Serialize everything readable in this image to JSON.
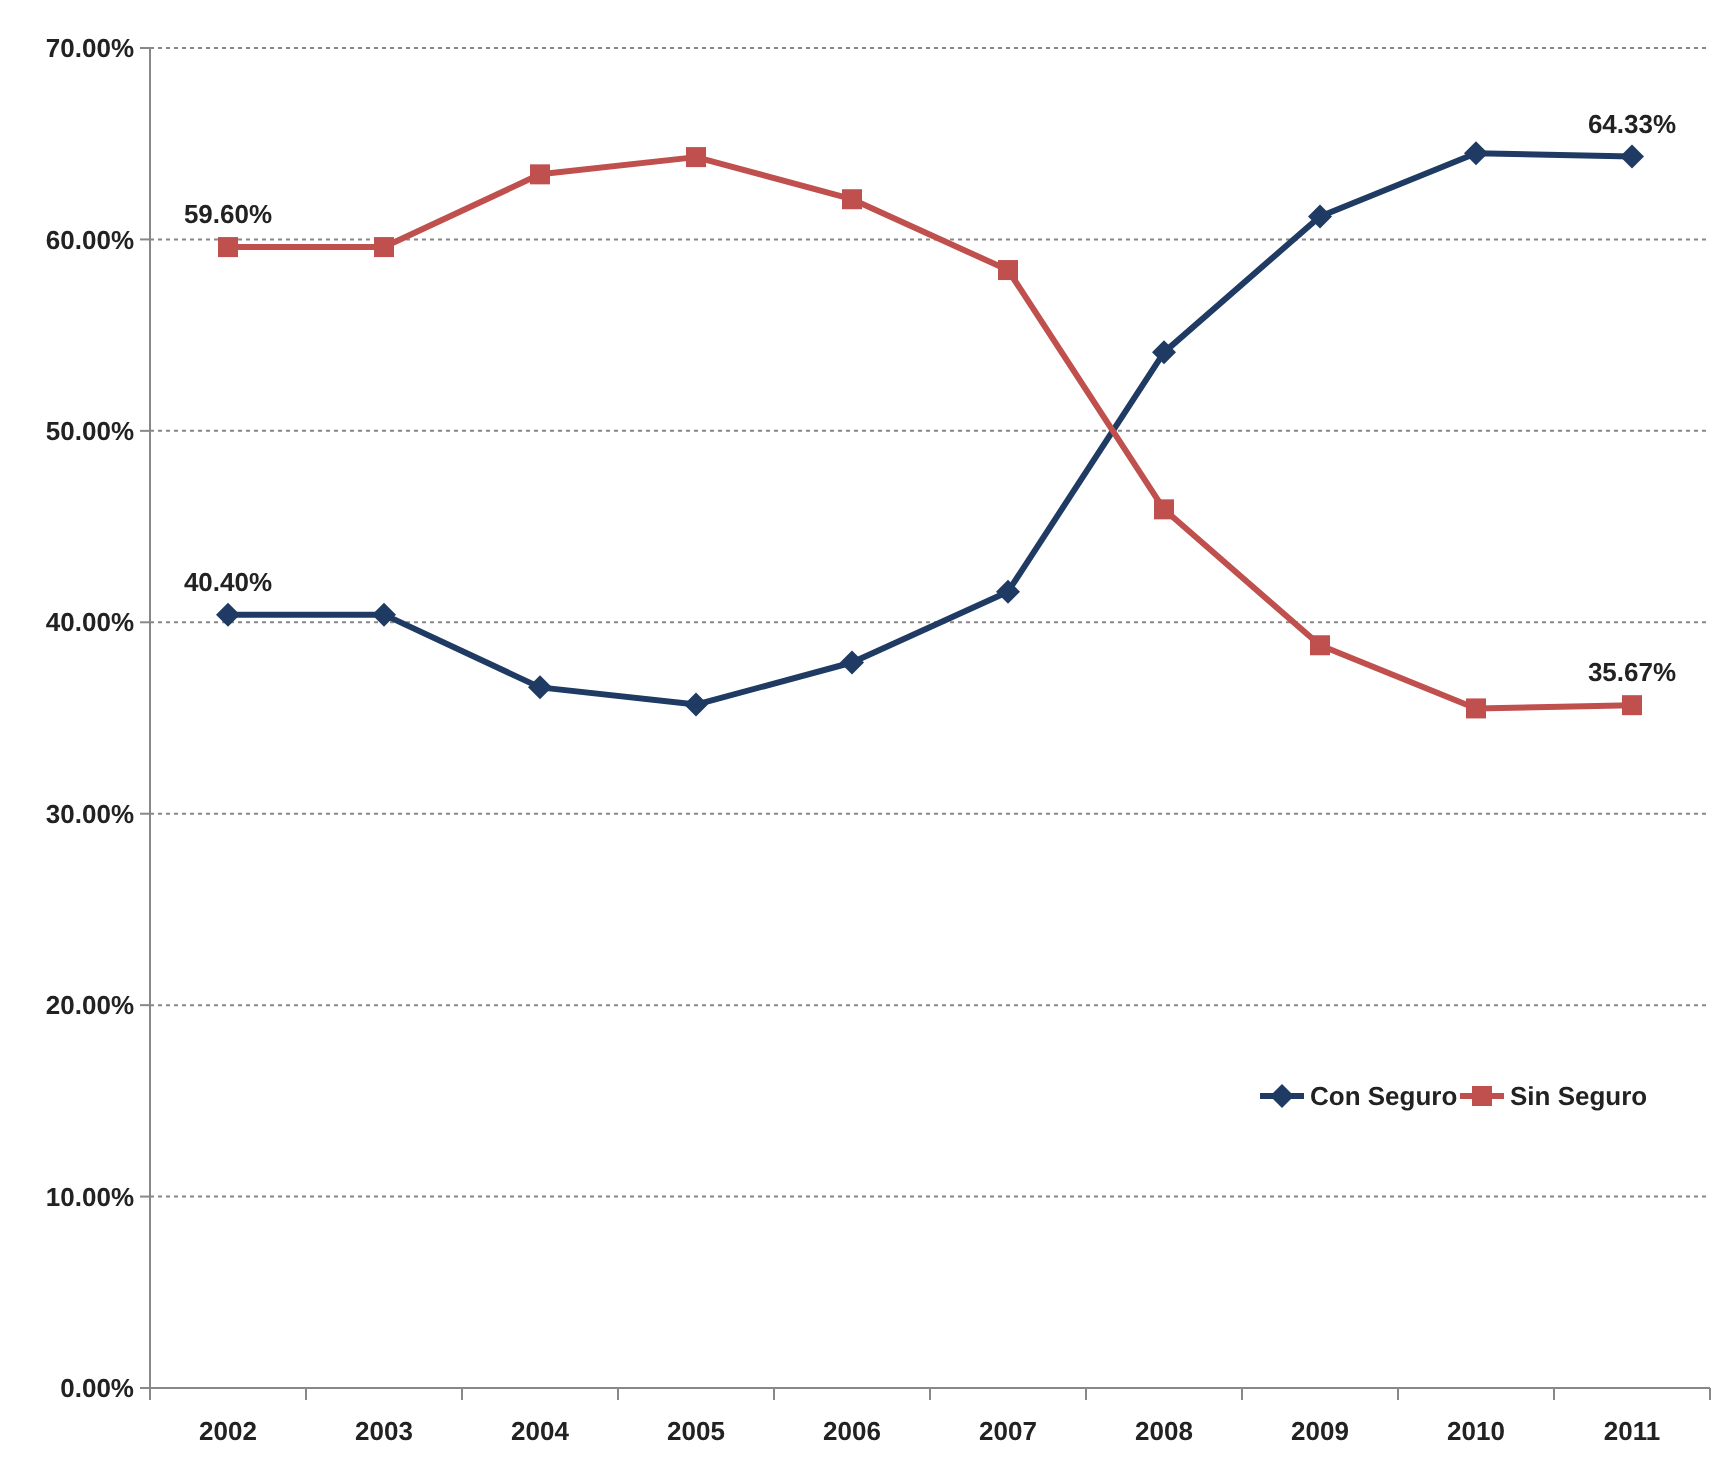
{
  "chart_data": {
    "type": "line",
    "categories": [
      "2002",
      "2003",
      "2004",
      "2005",
      "2006",
      "2007",
      "2008",
      "2009",
      "2010",
      "2011"
    ],
    "series": [
      {
        "name": "Con Seguro",
        "color": "#1f3b63",
        "marker": "diamond",
        "values": [
          40.4,
          40.4,
          36.6,
          35.7,
          37.9,
          41.6,
          54.1,
          61.2,
          64.5,
          64.33
        ],
        "value_labels": [
          "40.40%",
          null,
          null,
          null,
          null,
          null,
          null,
          null,
          null,
          "64.33%"
        ]
      },
      {
        "name": "Sin Seguro",
        "color": "#c0504d",
        "marker": "square",
        "values": [
          59.6,
          59.6,
          63.4,
          64.3,
          62.1,
          58.4,
          45.9,
          38.8,
          35.5,
          35.67
        ],
        "value_labels": [
          "59.60%",
          null,
          null,
          null,
          null,
          null,
          null,
          null,
          null,
          "35.67%"
        ]
      }
    ],
    "ylim": [
      0,
      70
    ],
    "yticks": [
      {
        "value": 0,
        "label": "0.00%"
      },
      {
        "value": 10,
        "label": "10.00%"
      },
      {
        "value": 20,
        "label": "20.00%"
      },
      {
        "value": 30,
        "label": "30.00%"
      },
      {
        "value": 40,
        "label": "40.00%"
      },
      {
        "value": 50,
        "label": "50.00%"
      },
      {
        "value": 60,
        "label": "60.00%"
      },
      {
        "value": 70,
        "label": "70.00%"
      }
    ],
    "grid": "y",
    "legend": "right",
    "line_style": "solid"
  }
}
